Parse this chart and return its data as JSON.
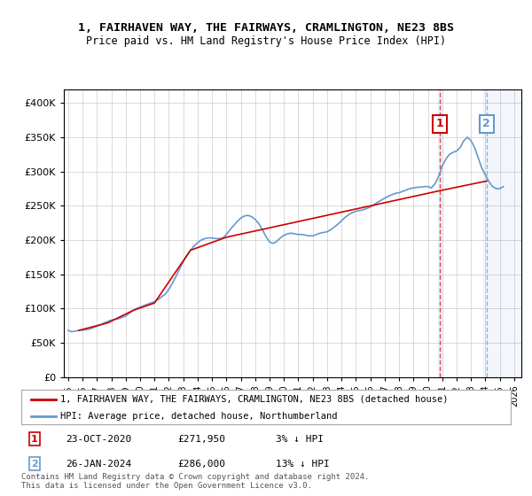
{
  "title1": "1, FAIRHAVEN WAY, THE FAIRWAYS, CRAMLINGTON, NE23 8BS",
  "title2": "Price paid vs. HM Land Registry's House Price Index (HPI)",
  "legend1": "1, FAIRHAVEN WAY, THE FAIRWAYS, CRAMLINGTON, NE23 8BS (detached house)",
  "legend2": "HPI: Average price, detached house, Northumberland",
  "footnote": "Contains HM Land Registry data © Crown copyright and database right 2024.\nThis data is licensed under the Open Government Licence v3.0.",
  "sale1_date": "23-OCT-2020",
  "sale1_price": "£271,950",
  "sale1_hpi": "3% ↓ HPI",
  "sale2_date": "26-JAN-2024",
  "sale2_price": "£286,000",
  "sale2_hpi": "13% ↓ HPI",
  "color_sold": "#cc0000",
  "color_hpi": "#6699cc",
  "color_sale_marker": "#cc0000",
  "background_color": "#ffffff",
  "grid_color": "#cccccc",
  "ylim": [
    0,
    420000
  ],
  "yticks": [
    0,
    50000,
    100000,
    150000,
    200000,
    250000,
    300000,
    350000,
    400000
  ],
  "hpi_data": {
    "dates": [
      1995.0,
      1995.25,
      1995.5,
      1995.75,
      1996.0,
      1996.25,
      1996.5,
      1996.75,
      1997.0,
      1997.25,
      1997.5,
      1997.75,
      1998.0,
      1998.25,
      1998.5,
      1998.75,
      1999.0,
      1999.25,
      1999.5,
      1999.75,
      2000.0,
      2000.25,
      2000.5,
      2000.75,
      2001.0,
      2001.25,
      2001.5,
      2001.75,
      2002.0,
      2002.25,
      2002.5,
      2002.75,
      2003.0,
      2003.25,
      2003.5,
      2003.75,
      2004.0,
      2004.25,
      2004.5,
      2004.75,
      2005.0,
      2005.25,
      2005.5,
      2005.75,
      2006.0,
      2006.25,
      2006.5,
      2006.75,
      2007.0,
      2007.25,
      2007.5,
      2007.75,
      2008.0,
      2008.25,
      2008.5,
      2008.75,
      2009.0,
      2009.25,
      2009.5,
      2009.75,
      2010.0,
      2010.25,
      2010.5,
      2010.75,
      2011.0,
      2011.25,
      2011.5,
      2011.75,
      2012.0,
      2012.25,
      2012.5,
      2012.75,
      2013.0,
      2013.25,
      2013.5,
      2013.75,
      2014.0,
      2014.25,
      2014.5,
      2014.75,
      2015.0,
      2015.25,
      2015.5,
      2015.75,
      2016.0,
      2016.25,
      2016.5,
      2016.75,
      2017.0,
      2017.25,
      2017.5,
      2017.75,
      2018.0,
      2018.25,
      2018.5,
      2018.75,
      2019.0,
      2019.25,
      2019.5,
      2019.75,
      2020.0,
      2020.25,
      2020.5,
      2020.75,
      2021.0,
      2021.25,
      2021.5,
      2021.75,
      2022.0,
      2022.25,
      2022.5,
      2022.75,
      2023.0,
      2023.25,
      2023.5,
      2023.75,
      2024.0,
      2024.25,
      2024.5,
      2024.75,
      2025.0,
      2025.25
    ],
    "values": [
      68000,
      66000,
      67000,
      68000,
      68500,
      69000,
      70000,
      72000,
      74000,
      76000,
      79000,
      81000,
      83000,
      84000,
      85000,
      87000,
      89000,
      93000,
      97000,
      100000,
      102000,
      104000,
      106000,
      108000,
      110000,
      113000,
      117000,
      121000,
      128000,
      137000,
      147000,
      158000,
      168000,
      177000,
      185000,
      191000,
      196000,
      200000,
      202000,
      203000,
      203000,
      202000,
      202000,
      203000,
      208000,
      215000,
      221000,
      227000,
      232000,
      235000,
      236000,
      234000,
      230000,
      224000,
      215000,
      205000,
      197000,
      195000,
      198000,
      203000,
      207000,
      209000,
      210000,
      209000,
      208000,
      208000,
      207000,
      206000,
      206000,
      208000,
      210000,
      211000,
      212000,
      215000,
      219000,
      223000,
      228000,
      233000,
      237000,
      240000,
      242000,
      243000,
      244000,
      246000,
      248000,
      251000,
      255000,
      258000,
      261000,
      264000,
      266000,
      268000,
      269000,
      271000,
      273000,
      275000,
      276000,
      277000,
      277000,
      278000,
      278000,
      276000,
      282000,
      293000,
      308000,
      318000,
      325000,
      328000,
      330000,
      335000,
      345000,
      350000,
      345000,
      335000,
      320000,
      305000,
      295000,
      285000,
      278000,
      275000,
      275000,
      278000
    ]
  },
  "sold_data": {
    "dates": [
      1995.75,
      1997.75,
      1999.5,
      2001.0,
      2003.5,
      2006.0,
      2020.83,
      2024.08
    ],
    "values": [
      68000,
      79000,
      97000,
      108000,
      185000,
      204000,
      271950,
      286000
    ]
  },
  "sale1_x": 2020.83,
  "sale1_y": 271950,
  "sale2_x": 2024.08,
  "sale2_y": 286000,
  "xmin": 1995,
  "xmax": 2027
}
